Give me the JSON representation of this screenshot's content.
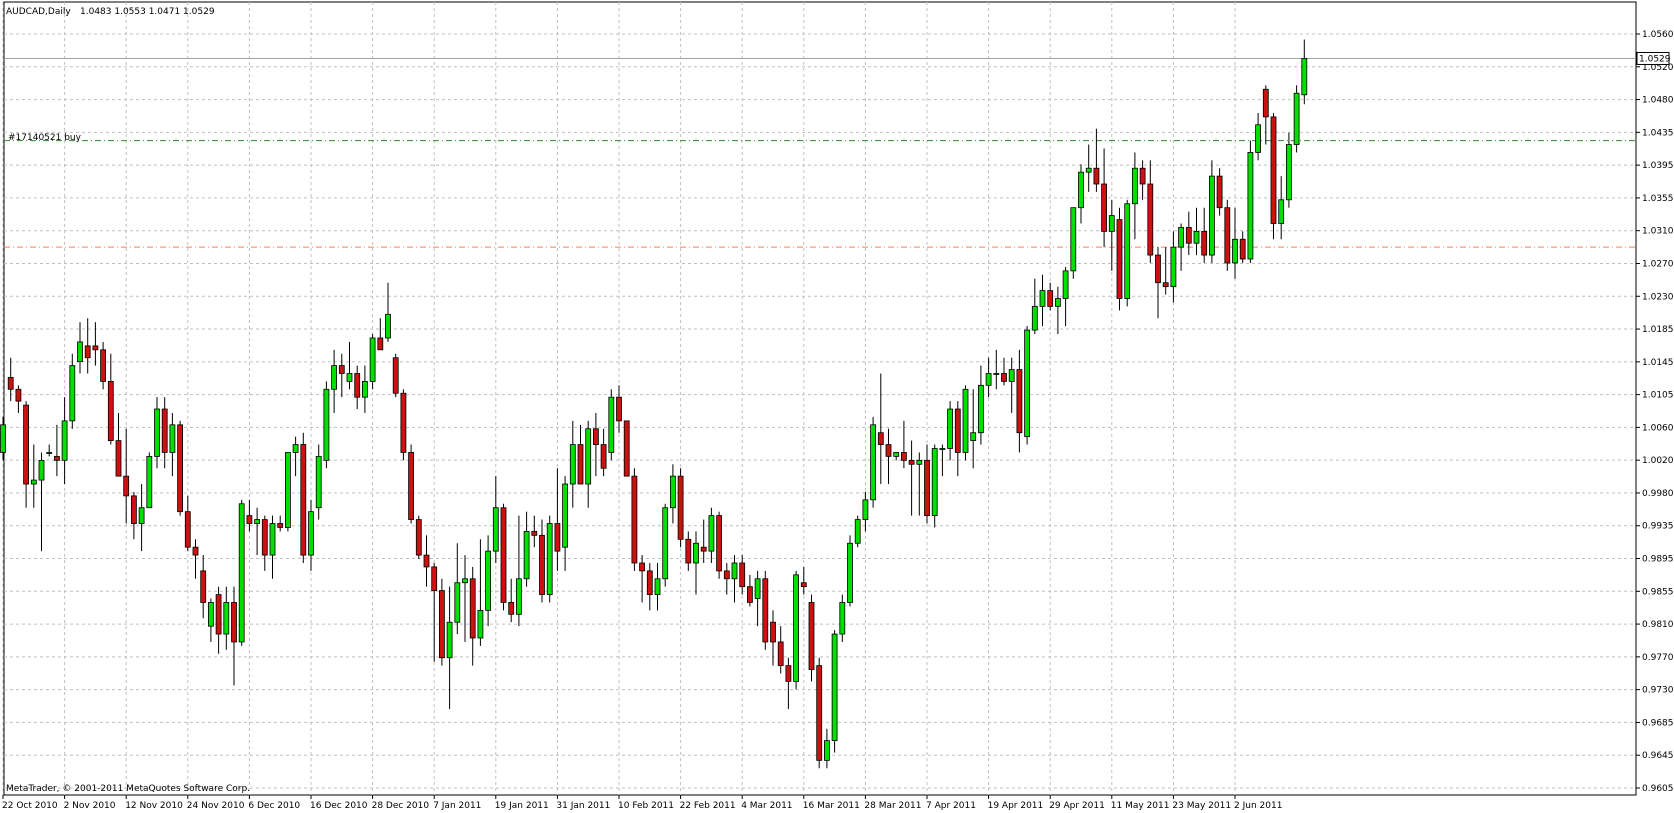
{
  "header": {
    "symbol": "AUDCAD,Daily",
    "ohlc": "1.0483 1.0553 1.0471 1.0529"
  },
  "copyright": "MetaTrader, © 2001-2011 MetaQuotes Software Corp.",
  "order": {
    "label": "#17140521 buy",
    "price": 1.0425,
    "color": "#2e8b2e"
  },
  "stop_line": {
    "price": 1.029,
    "color": "#ff7f50"
  },
  "current_price": {
    "label": "1.0529",
    "price": 1.0529
  },
  "colors": {
    "bull": "#00e000",
    "bear": "#cc1111",
    "wick": "#000000",
    "grid": "#c0c0c0",
    "axis": "#000000"
  },
  "chart_data": {
    "type": "candlestick",
    "title": "AUDCAD,Daily",
    "ylim": [
      0.9605,
      1.0575
    ],
    "grid": true,
    "y_ticks": [
      "1.0560",
      "1.0520",
      "1.0480",
      "1.0435",
      "1.0395",
      "1.0355",
      "1.0310",
      "1.0270",
      "1.0230",
      "1.0185",
      "1.0145",
      "1.0105",
      "1.0060",
      "1.0020",
      "0.9980",
      "0.9935",
      "0.9895",
      "0.9855",
      "0.9810",
      "0.9770",
      "0.9730",
      "0.9685",
      "0.9645",
      "0.9605"
    ],
    "x_ticks": [
      {
        "label": "22 Oct 2010",
        "index": 0
      },
      {
        "label": "2 Nov 2010",
        "index": 8
      },
      {
        "label": "12 Nov 2010",
        "index": 16
      },
      {
        "label": "24 Nov 2010",
        "index": 24
      },
      {
        "label": "6 Dec 2010",
        "index": 32
      },
      {
        "label": "16 Dec 2010",
        "index": 40
      },
      {
        "label": "28 Dec 2010",
        "index": 48
      },
      {
        "label": "7 Jan 2011",
        "index": 56
      },
      {
        "label": "19 Jan 2011",
        "index": 64
      },
      {
        "label": "31 Jan 2011",
        "index": 72
      },
      {
        "label": "10 Feb 2011",
        "index": 80
      },
      {
        "label": "22 Feb 2011",
        "index": 88
      },
      {
        "label": "4 Mar 2011",
        "index": 96
      },
      {
        "label": "16 Mar 2011",
        "index": 104
      },
      {
        "label": "28 Mar 2011",
        "index": 112
      },
      {
        "label": "7 Apr 2011",
        "index": 120
      },
      {
        "label": "19 Apr 2011",
        "index": 128
      },
      {
        "label": "29 Apr 2011",
        "index": 136
      },
      {
        "label": "11 May 2011",
        "index": 144
      },
      {
        "label": "23 May 2011",
        "index": 152
      },
      {
        "label": "2 Jun 2011",
        "index": 160
      }
    ],
    "candles": [
      [
        1.003,
        1.0075,
        1.002,
        1.0065
      ],
      [
        1.0125,
        1.015,
        1.0095,
        1.011
      ],
      [
        1.011,
        1.0115,
        1.008,
        1.0095
      ],
      [
        1.009,
        1.0095,
        0.996,
        0.999
      ],
      [
        0.999,
        1.004,
        0.996,
        0.9995
      ],
      [
        0.9995,
        1.003,
        0.9905,
        1.002
      ],
      [
        1.003,
        1.004,
        1.0025,
        1.003
      ],
      [
        1.0025,
        1.0065,
        1.0,
        1.002
      ],
      [
        1.002,
        1.01,
        0.999,
        1.007
      ],
      [
        1.007,
        1.0155,
        1.006,
        1.014
      ],
      [
        1.0145,
        1.0195,
        1.013,
        1.017
      ],
      [
        1.0165,
        1.02,
        1.013,
        1.015
      ],
      [
        1.0165,
        1.0195,
        1.014,
        1.016
      ],
      [
        1.016,
        1.017,
        1.011,
        1.012
      ],
      [
        1.012,
        1.0155,
        1.004,
        1.0045
      ],
      [
        1.0045,
        1.008,
        1.0,
        1.0
      ],
      [
        1.0,
        1.006,
        0.994,
        0.9975
      ],
      [
        0.9975,
        0.998,
        0.992,
        0.994
      ],
      [
        0.994,
        0.999,
        0.9905,
        0.996
      ],
      [
        0.996,
        1.003,
        0.996,
        1.0025
      ],
      [
        1.0025,
        1.01,
        1.001,
        1.0085
      ],
      [
        1.0085,
        1.01,
        1.001,
        1.003
      ],
      [
        1.003,
        1.008,
        1.0,
        1.0065
      ],
      [
        1.0065,
        1.007,
        0.995,
        0.9955
      ],
      [
        0.9955,
        0.9975,
        0.9905,
        0.991
      ],
      [
        0.991,
        0.992,
        0.987,
        0.99
      ],
      [
        0.988,
        0.99,
        0.982,
        0.984
      ],
      [
        0.981,
        0.9845,
        0.979,
        0.984
      ],
      [
        0.985,
        0.986,
        0.9775,
        0.98
      ],
      [
        0.98,
        0.986,
        0.978,
        0.984
      ],
      [
        0.984,
        0.986,
        0.9735,
        0.979
      ],
      [
        0.979,
        0.997,
        0.9785,
        0.9965
      ],
      [
        0.995,
        0.997,
        0.993,
        0.994
      ],
      [
        0.994,
        0.996,
        0.99,
        0.9945
      ],
      [
        0.9945,
        0.995,
        0.988,
        0.99
      ],
      [
        0.99,
        0.995,
        0.987,
        0.994
      ],
      [
        0.994,
        0.995,
        0.993,
        0.9935
      ],
      [
        0.9935,
        1.003,
        0.993,
        1.003
      ],
      [
        1.003,
        1.005,
        1.0,
        1.004
      ],
      [
        1.004,
        1.0055,
        0.989,
        0.99
      ],
      [
        0.99,
        0.997,
        0.988,
        0.9955
      ],
      [
        0.996,
        1.004,
        0.9945,
        1.0025
      ],
      [
        1.002,
        1.012,
        1.001,
        1.011
      ],
      [
        1.011,
        1.016,
        1.008,
        1.014
      ],
      [
        1.014,
        1.0155,
        1.01,
        1.013
      ],
      [
        1.012,
        1.017,
        1.011,
        1.013
      ],
      [
        1.013,
        1.014,
        1.0085,
        1.01
      ],
      [
        1.01,
        1.014,
        1.008,
        1.012
      ],
      [
        1.012,
        1.018,
        1.011,
        1.0175
      ],
      [
        1.0175,
        1.02,
        1.016,
        1.016
      ],
      [
        1.0175,
        1.0245,
        1.017,
        1.0205
      ],
      [
        1.015,
        1.0155,
        1.01,
        1.0105
      ],
      [
        1.0105,
        1.011,
        1.002,
        1.003
      ],
      [
        1.003,
        1.004,
        0.994,
        0.9945
      ],
      [
        0.9945,
        0.995,
        0.9895,
        0.99
      ],
      [
        0.99,
        0.9925,
        0.986,
        0.9885
      ],
      [
        0.9885,
        0.989,
        0.9765,
        0.9855
      ],
      [
        0.9855,
        0.987,
        0.976,
        0.977
      ],
      [
        0.977,
        0.986,
        0.9705,
        0.9815
      ],
      [
        0.9815,
        0.9915,
        0.98,
        0.9865
      ],
      [
        0.9865,
        0.99,
        0.979,
        0.987
      ],
      [
        0.987,
        0.9885,
        0.976,
        0.9795
      ],
      [
        0.9795,
        0.992,
        0.9785,
        0.983
      ],
      [
        0.983,
        0.9925,
        0.981,
        0.9905
      ],
      [
        0.9905,
        1.0,
        0.989,
        0.996
      ],
      [
        0.996,
        0.9965,
        0.983,
        0.984
      ],
      [
        0.984,
        0.987,
        0.9815,
        0.9825
      ],
      [
        0.9825,
        0.995,
        0.981,
        0.987
      ],
      [
        0.987,
        0.9955,
        0.986,
        0.993
      ],
      [
        0.993,
        0.995,
        0.991,
        0.9925
      ],
      [
        0.9925,
        0.9945,
        0.984,
        0.985
      ],
      [
        0.985,
        0.995,
        0.984,
        0.994
      ],
      [
        0.994,
        1.001,
        0.988,
        0.9905
      ],
      [
        0.991,
        1.0,
        0.988,
        0.999
      ],
      [
        0.999,
        1.007,
        0.996,
        1.004
      ],
      [
        1.004,
        1.0065,
        0.999,
        0.999
      ],
      [
        0.999,
        1.007,
        0.996,
        1.006
      ],
      [
        1.006,
        1.008,
        1.0,
        1.004
      ],
      [
        1.004,
        1.006,
        1.0,
        1.001
      ],
      [
        1.003,
        1.011,
        1.002,
        1.01
      ],
      [
        1.01,
        1.0115,
        1.0055,
        1.007
      ],
      [
        1.007,
        1.007,
        1.0,
        1.0
      ],
      [
        1.0,
        1.001,
        0.988,
        0.989
      ],
      [
        0.989,
        0.99,
        0.984,
        0.988
      ],
      [
        0.988,
        0.989,
        0.983,
        0.985
      ],
      [
        0.985,
        0.989,
        0.983,
        0.987
      ],
      [
        0.987,
        0.9965,
        0.986,
        0.996
      ],
      [
        0.996,
        1.0015,
        0.994,
        1.0
      ],
      [
        1.0,
        1.001,
        0.991,
        0.992
      ],
      [
        0.992,
        0.993,
        0.988,
        0.989
      ],
      [
        0.989,
        0.993,
        0.985,
        0.9915
      ],
      [
        0.991,
        0.9945,
        0.989,
        0.9905
      ],
      [
        0.9905,
        0.996,
        0.989,
        0.995
      ],
      [
        0.995,
        0.9955,
        0.987,
        0.988
      ],
      [
        0.988,
        0.989,
        0.985,
        0.987
      ],
      [
        0.987,
        0.99,
        0.984,
        0.989
      ],
      [
        0.989,
        0.99,
        0.985,
        0.986
      ],
      [
        0.986,
        0.9875,
        0.9835,
        0.984
      ],
      [
        0.9845,
        0.988,
        0.981,
        0.987
      ],
      [
        0.987,
        0.988,
        0.978,
        0.979
      ],
      [
        0.9815,
        0.983,
        0.976,
        0.979
      ],
      [
        0.979,
        0.981,
        0.975,
        0.976
      ],
      [
        0.976,
        0.977,
        0.9705,
        0.974
      ],
      [
        0.974,
        0.988,
        0.973,
        0.9875
      ],
      [
        0.9865,
        0.9885,
        0.985,
        0.986
      ],
      [
        0.984,
        0.985,
        0.974,
        0.9755
      ],
      [
        0.976,
        0.977,
        0.963,
        0.964
      ],
      [
        0.964,
        0.968,
        0.963,
        0.9665
      ],
      [
        0.9665,
        0.9805,
        0.965,
        0.98
      ],
      [
        0.98,
        0.985,
        0.979,
        0.984
      ],
      [
        0.984,
        0.9925,
        0.9835,
        0.9915
      ],
      [
        0.9915,
        0.995,
        0.991,
        0.9945
      ],
      [
        0.9945,
        0.998,
        0.993,
        0.997
      ],
      [
        0.997,
        1.0075,
        0.996,
        1.0065
      ],
      [
        1.0055,
        1.013,
        0.999,
        1.004
      ],
      [
        1.004,
        1.006,
        0.999,
        1.0025
      ],
      [
        1.0025,
        1.003,
        1.002,
        1.003
      ],
      [
        1.003,
        1.007,
        1.001,
        1.002
      ],
      [
        1.002,
        1.0045,
        0.995,
        1.0015
      ],
      [
        1.0015,
        1.003,
        0.995,
        1.002
      ],
      [
        1.002,
        1.004,
        0.994,
        0.995
      ],
      [
        0.995,
        1.004,
        0.9935,
        1.0035
      ],
      [
        1.0035,
        1.004,
        1.0,
        1.0035
      ],
      [
        1.0035,
        1.0095,
        1.002,
        1.0085
      ],
      [
        1.0085,
        1.0095,
        1.0,
        1.003
      ],
      [
        1.003,
        1.0115,
        1.002,
        1.011
      ],
      [
        1.0045,
        1.011,
        1.001,
        1.0055
      ],
      [
        1.0055,
        1.014,
        1.004,
        1.0115
      ],
      [
        1.0115,
        1.015,
        1.01,
        1.013
      ],
      [
        1.013,
        1.016,
        1.011,
        1.013
      ],
      [
        1.013,
        1.015,
        1.0115,
        1.012
      ],
      [
        1.012,
        1.015,
        1.008,
        1.0135
      ],
      [
        1.0135,
        1.016,
        1.003,
        1.0055
      ],
      [
        1.005,
        1.019,
        1.004,
        1.0185
      ],
      [
        1.0185,
        1.025,
        1.018,
        1.0215
      ],
      [
        1.0215,
        1.0255,
        1.019,
        1.0235
      ],
      [
        1.0235,
        1.0245,
        1.021,
        1.0215
      ],
      [
        1.0215,
        1.024,
        1.018,
        1.0225
      ],
      [
        1.0225,
        1.0265,
        1.019,
        1.026
      ],
      [
        1.026,
        1.034,
        1.025,
        1.034
      ],
      [
        1.034,
        1.0395,
        1.032,
        1.0385
      ],
      [
        1.0385,
        1.042,
        1.036,
        1.039
      ],
      [
        1.039,
        1.044,
        1.036,
        1.037
      ],
      [
        1.037,
        1.0415,
        1.029,
        1.031
      ],
      [
        1.031,
        1.035,
        1.026,
        1.033
      ],
      [
        1.0325,
        1.034,
        1.021,
        1.0225
      ],
      [
        1.0225,
        1.035,
        1.0215,
        1.0345
      ],
      [
        1.0345,
        1.041,
        1.03,
        1.039
      ],
      [
        1.039,
        1.04,
        1.035,
        1.037
      ],
      [
        1.037,
        1.04,
        1.027,
        1.028
      ],
      [
        1.028,
        1.029,
        1.02,
        1.0245
      ],
      [
        1.0245,
        1.029,
        1.023,
        1.024
      ],
      [
        1.024,
        1.031,
        1.022,
        1.029
      ],
      [
        1.029,
        1.032,
        1.026,
        1.0315
      ],
      [
        1.0315,
        1.0335,
        1.028,
        1.0295
      ],
      [
        1.0295,
        1.034,
        1.028,
        1.031
      ],
      [
        1.031,
        1.034,
        1.027,
        1.028
      ],
      [
        1.028,
        1.04,
        1.027,
        1.038
      ],
      [
        1.038,
        1.039,
        1.033,
        1.034
      ],
      [
        1.034,
        1.035,
        1.026,
        1.027
      ],
      [
        1.027,
        1.034,
        1.025,
        1.03
      ],
      [
        1.03,
        1.031,
        1.027,
        1.0275
      ],
      [
        1.0275,
        1.0425,
        1.027,
        1.041
      ],
      [
        1.041,
        1.046,
        1.04,
        1.0445
      ],
      [
        1.049,
        1.0495,
        1.042,
        1.0455
      ],
      [
        1.0455,
        1.046,
        1.03,
        1.032
      ],
      [
        1.032,
        1.038,
        1.03,
        1.035
      ],
      [
        1.035,
        1.0435,
        1.034,
        1.042
      ],
      [
        1.042,
        1.0495,
        1.041,
        1.0485
      ],
      [
        1.0483,
        1.0553,
        1.0471,
        1.0529
      ]
    ]
  }
}
